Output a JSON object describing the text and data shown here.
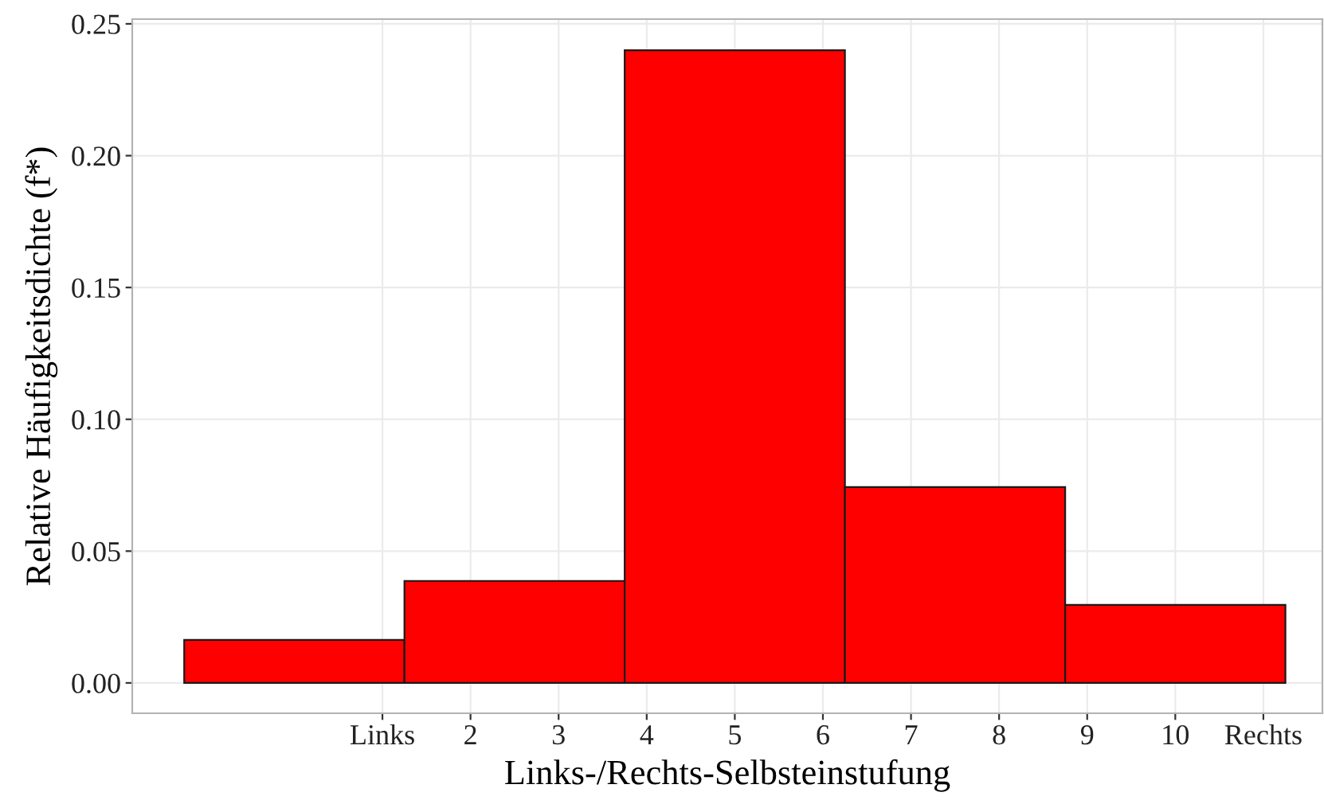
{
  "chart_data": {
    "type": "histogram",
    "xlabel": "Links-/Rechts-Selbsteinstufung",
    "ylabel": "Relative Häufigkeitsdichte (f*)",
    "bins": [
      -1.25,
      1.25,
      3.75,
      6.25,
      8.75,
      11.25
    ],
    "values": [
      0.0163,
      0.0387,
      0.24,
      0.0743,
      0.0296
    ],
    "color": "#ff0000",
    "xlim": [
      -1.84,
      11.67
    ],
    "ylim": [
      -0.0115,
      0.2518
    ],
    "xticks": [
      {
        "value": 1,
        "label": "Links"
      },
      2,
      3,
      4,
      5,
      6,
      7,
      8,
      9,
      10,
      {
        "value": 11,
        "label": "Rechts"
      }
    ],
    "yticks": [
      {
        "value": 0,
        "label": "0.00"
      },
      {
        "value": 0.05,
        "label": "0.05"
      },
      {
        "value": 0.1,
        "label": "0.10"
      },
      {
        "value": 0.15,
        "label": "0.15"
      },
      {
        "value": 0.2,
        "label": "0.20"
      },
      {
        "value": 0.25,
        "label": "0.25"
      }
    ],
    "grid": true
  }
}
